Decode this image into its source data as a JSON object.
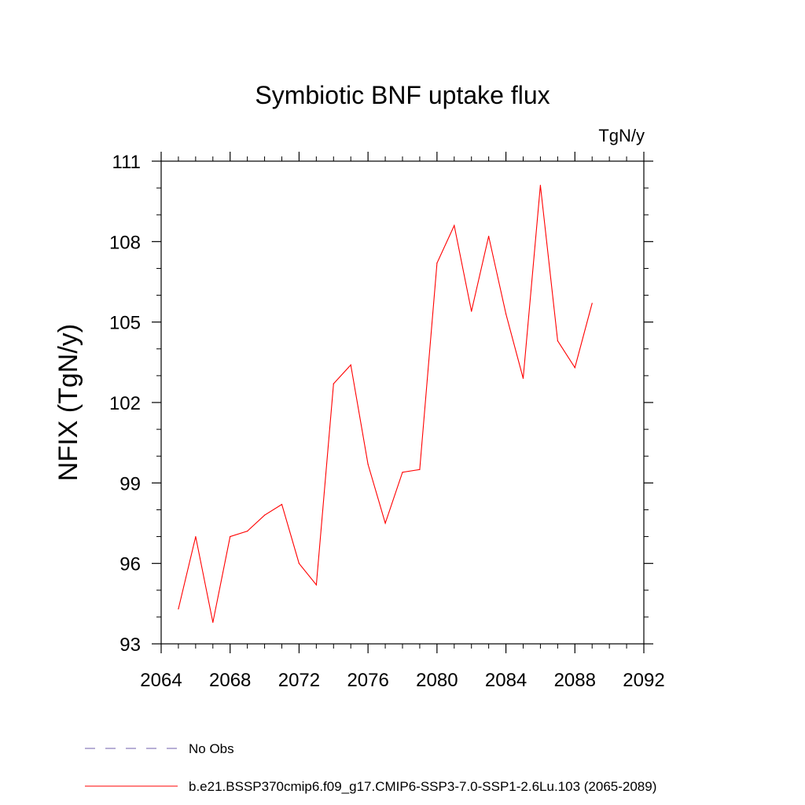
{
  "chart_data": {
    "type": "line",
    "title": "Symbiotic BNF uptake flux",
    "units_label": "TgN/y",
    "ylabel": "NFIX  (TgN/y)",
    "xlabel": "",
    "xlim": [
      2064,
      2092
    ],
    "ylim": [
      93,
      111
    ],
    "xticks": [
      2064,
      2068,
      2072,
      2076,
      2080,
      2084,
      2088,
      2092
    ],
    "yticks": [
      93,
      96,
      99,
      102,
      105,
      108,
      111
    ],
    "grid": false,
    "legend_position": "bottom-left",
    "series": [
      {
        "name": "b.e21.BSSP370cmip6.f09_g17.CMIP6-SSP3-7.0-SSP1-2.6Lu.103 (2065-2089)",
        "color": "#ff0000",
        "style": "solid",
        "x": [
          2065,
          2066,
          2067,
          2068,
          2069,
          2070,
          2071,
          2072,
          2073,
          2074,
          2075,
          2076,
          2077,
          2078,
          2079,
          2080,
          2081,
          2082,
          2083,
          2084,
          2085,
          2086,
          2087,
          2088,
          2089
        ],
        "values": [
          94.3,
          97.0,
          93.8,
          97.0,
          97.2,
          97.8,
          98.2,
          96.0,
          95.2,
          102.7,
          103.4,
          99.7,
          97.5,
          99.4,
          99.5,
          107.2,
          108.6,
          105.4,
          108.2,
          105.3,
          102.9,
          110.1,
          104.3,
          103.3,
          105.7
        ]
      }
    ],
    "legend": [
      {
        "label": "No Obs",
        "color": "#6f5fae",
        "style": "dashed"
      },
      {
        "label": "b.e21.BSSP370cmip6.f09_g17.CMIP6-SSP3-7.0-SSP1-2.6Lu.103 (2065-2089)",
        "color": "#ff0000",
        "style": "solid"
      }
    ]
  }
}
